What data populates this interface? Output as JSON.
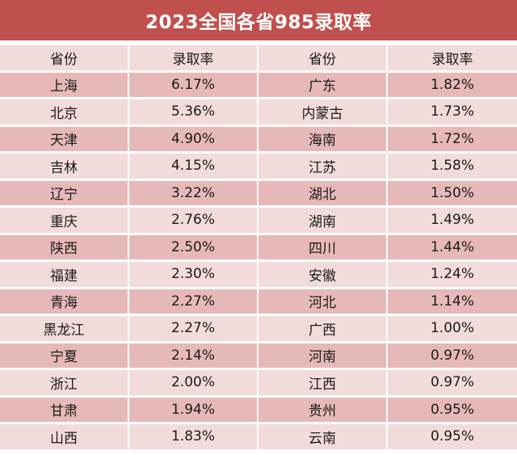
{
  "title": "2023全国各省985录取率",
  "headers": [
    "省份",
    "录取率",
    "省份",
    "录取率"
  ],
  "rows": [
    [
      "上海",
      "6.17%",
      "广东",
      "1.82%"
    ],
    [
      "北京",
      "5.36%",
      "内蒙古",
      "1.73%"
    ],
    [
      "天津",
      "4.90%",
      "海南",
      "1.72%"
    ],
    [
      "吉林",
      "4.15%",
      "江苏",
      "1.58%"
    ],
    [
      "辽宁",
      "3.22%",
      "湖北",
      "1.50%"
    ],
    [
      "重庆",
      "2.76%",
      "湖南",
      "1.49%"
    ],
    [
      "陕西",
      "2.50%",
      "四川",
      "1.44%"
    ],
    [
      "福建",
      "2.30%",
      "安徽",
      "1.24%"
    ],
    [
      "青海",
      "2.27%",
      "河北",
      "1.14%"
    ],
    [
      "黑龙江",
      "2.27%",
      "广西",
      "1.00%"
    ],
    [
      "宁夏",
      "2.14%",
      "河南",
      "0.97%"
    ],
    [
      "浙江",
      "2.00%",
      "江西",
      "0.97%"
    ],
    [
      "甘肃",
      "1.94%",
      "贵州",
      "0.95%"
    ],
    [
      "山西",
      "1.83%",
      "云南",
      "0.95%"
    ]
  ],
  "colors": {
    "title_bg": "#c0504d",
    "row_light": "#f2dcdb",
    "row_dark": "#e6b9b8"
  },
  "chart_data": {
    "type": "table",
    "title": "2023全国各省985录取率",
    "columns": [
      "省份",
      "录取率",
      "省份",
      "录取率"
    ],
    "rows": [
      [
        "上海",
        "6.17%",
        "广东",
        "1.82%"
      ],
      [
        "北京",
        "5.36%",
        "内蒙古",
        "1.73%"
      ],
      [
        "天津",
        "4.90%",
        "海南",
        "1.72%"
      ],
      [
        "吉林",
        "4.15%",
        "江苏",
        "1.58%"
      ],
      [
        "辽宁",
        "3.22%",
        "湖北",
        "1.50%"
      ],
      [
        "重庆",
        "2.76%",
        "湖南",
        "1.49%"
      ],
      [
        "陕西",
        "2.50%",
        "四川",
        "1.44%"
      ],
      [
        "福建",
        "2.30%",
        "安徽",
        "1.24%"
      ],
      [
        "青海",
        "2.27%",
        "河北",
        "1.14%"
      ],
      [
        "黑龙江",
        "2.27%",
        "广西",
        "1.00%"
      ],
      [
        "宁夏",
        "2.14%",
        "河南",
        "0.97%"
      ],
      [
        "浙江",
        "2.00%",
        "江西",
        "0.97%"
      ],
      [
        "甘肃",
        "1.94%",
        "贵州",
        "0.95%"
      ],
      [
        "山西",
        "1.83%",
        "云南",
        "0.95%"
      ]
    ]
  }
}
